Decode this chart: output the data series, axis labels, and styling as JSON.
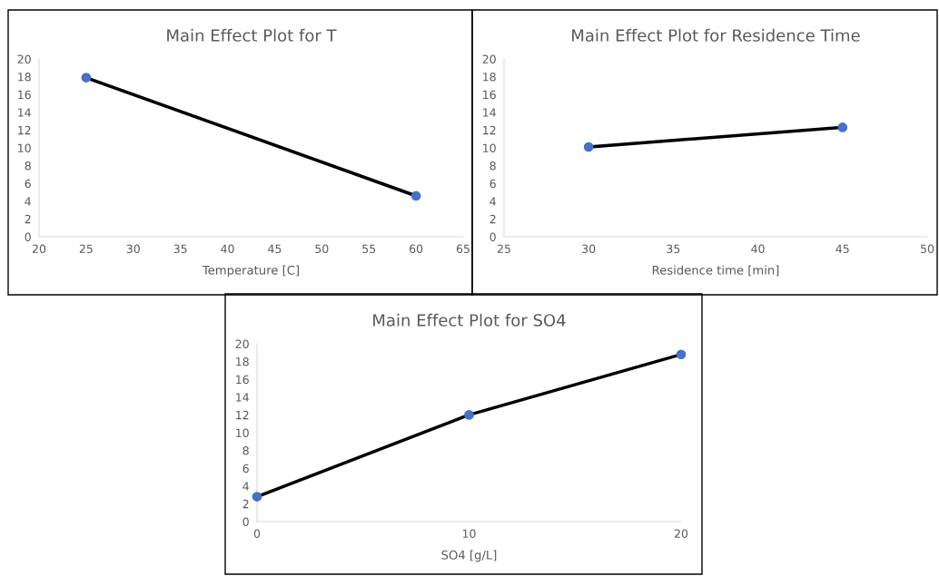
{
  "chart_data": [
    {
      "type": "line",
      "title": "Main Effect Plot for T",
      "xlabel": "Temperature [C]",
      "x": [
        25,
        60
      ],
      "series": [
        {
          "color": "#000000",
          "values": [
            17.9,
            4.6
          ]
        }
      ],
      "marker": "circle",
      "xlim": [
        20,
        65
      ],
      "xticks": [
        20,
        25,
        30,
        35,
        40,
        45,
        50,
        55,
        60,
        65
      ],
      "ylim": [
        0,
        20
      ],
      "yticks": [
        0,
        2,
        4,
        6,
        8,
        10,
        12,
        14,
        16,
        18,
        20
      ],
      "grid": false
    },
    {
      "type": "line",
      "title": "Main Effect Plot for Residence Time",
      "xlabel": "Residence time [min]",
      "x": [
        30,
        45
      ],
      "series": [
        {
          "color": "#000000",
          "values": [
            10.1,
            12.3
          ]
        }
      ],
      "marker": "circle",
      "xlim": [
        25,
        50
      ],
      "xticks": [
        25,
        30,
        35,
        40,
        45,
        50
      ],
      "ylim": [
        0,
        20
      ],
      "yticks": [
        0,
        2,
        4,
        6,
        8,
        10,
        12,
        14,
        16,
        18,
        20
      ],
      "grid": false
    },
    {
      "type": "line",
      "title": "Main Effect Plot for SO4",
      "xlabel": "SO4 [g/L]",
      "x": [
        0,
        10,
        20
      ],
      "series": [
        {
          "color": "#000000",
          "values": [
            2.8,
            12.0,
            18.8
          ]
        }
      ],
      "marker": "circle",
      "xlim": [
        0,
        20
      ],
      "xticks": [
        0,
        10,
        20
      ],
      "ylim": [
        0,
        20
      ],
      "yticks": [
        0,
        2,
        4,
        6,
        8,
        10,
        12,
        14,
        16,
        18,
        20
      ],
      "grid": false
    }
  ]
}
